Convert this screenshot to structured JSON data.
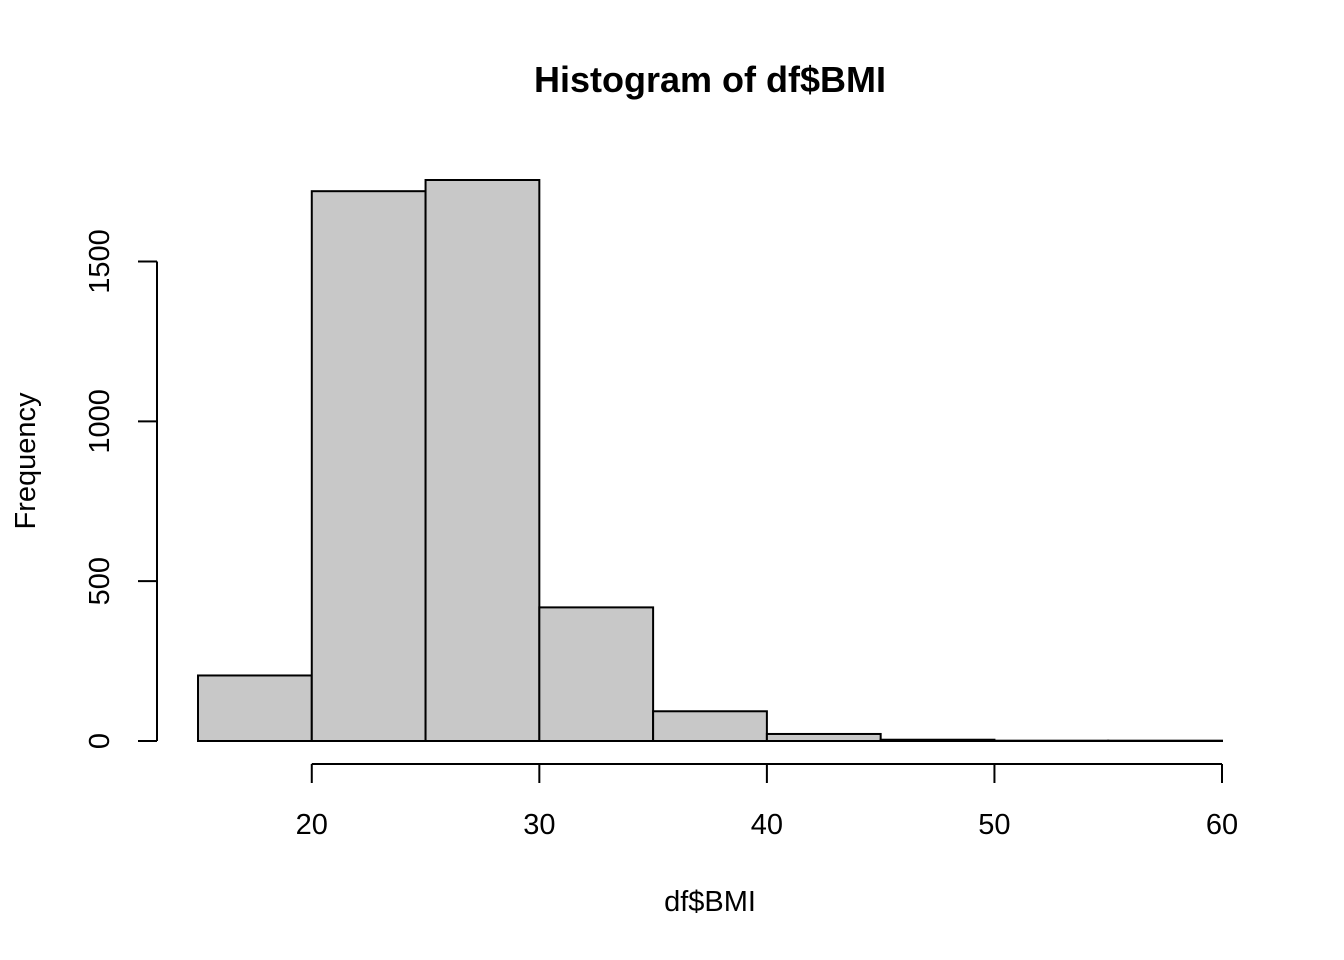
{
  "chart_data": {
    "type": "bar",
    "title": "Histogram of df$BMI",
    "xlabel": "df$BMI",
    "ylabel": "Frequency",
    "bin_edges": [
      15,
      20,
      25,
      30,
      35,
      40,
      45,
      50,
      55,
      60
    ],
    "values": [
      205,
      1720,
      1755,
      418,
      93,
      22,
      4,
      1,
      1
    ],
    "x_ticks": [
      20,
      30,
      40,
      50,
      60
    ],
    "y_ticks": [
      0,
      500,
      1000,
      1500
    ],
    "xlim": [
      15,
      60
    ],
    "ylim": [
      0,
      1755
    ],
    "grid": false,
    "colors": {
      "bar_fill": "#c8c8c8",
      "bar_stroke": "#000000",
      "axis": "#000000"
    }
  }
}
